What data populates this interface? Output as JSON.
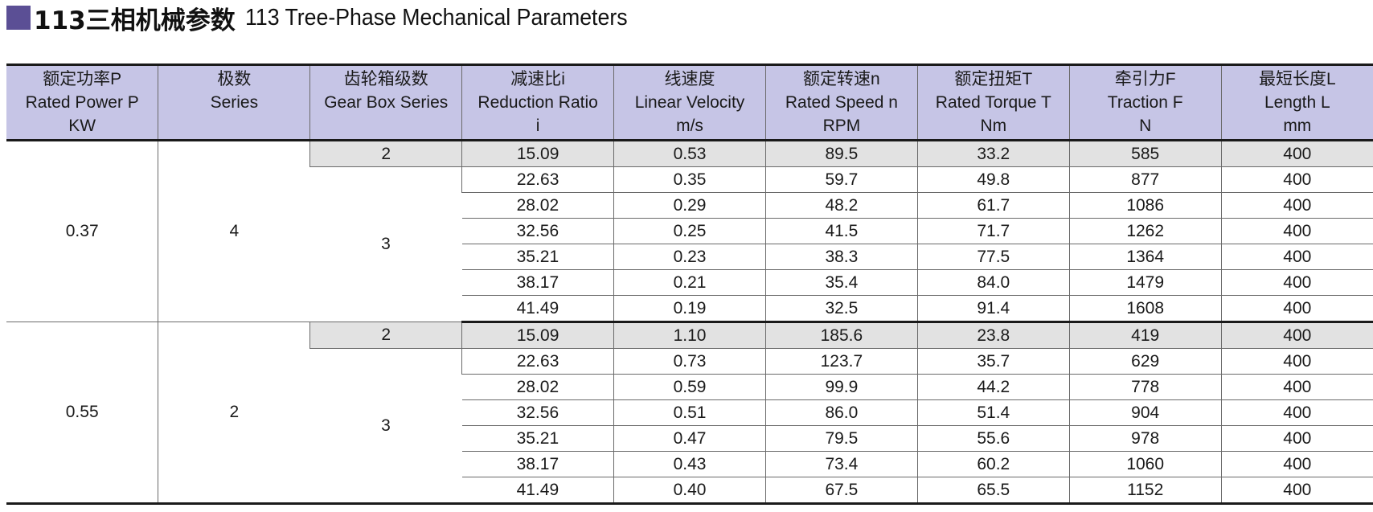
{
  "title": {
    "cn": "113三相机械参数",
    "en": "113 Tree-Phase Mechanical Parameters"
  },
  "colors": {
    "accent_square": "#5b4f95",
    "header_bg": "#c6c5e6",
    "shaded_row_bg": "#e2e2e2"
  },
  "headers": [
    {
      "cn": "额定功率P",
      "en": "Rated Power P",
      "unit": "KW"
    },
    {
      "cn": "极数",
      "en": "Series",
      "unit": ""
    },
    {
      "cn": "齿轮箱级数",
      "en": "Gear Box Series",
      "unit": ""
    },
    {
      "cn": "减速比i",
      "en": "Reduction Ratio",
      "unit": "i"
    },
    {
      "cn": "线速度",
      "en": "Linear Velocity",
      "unit": "m/s"
    },
    {
      "cn": "额定转速n",
      "en": "Rated Speed n",
      "unit": "RPM"
    },
    {
      "cn": "额定扭矩T",
      "en": "Rated Torque T",
      "unit": "Nm"
    },
    {
      "cn": "牵引力F",
      "en": "Traction F",
      "unit": "N"
    },
    {
      "cn": "最短长度L",
      "en": "Length L",
      "unit": "mm"
    }
  ],
  "groups": [
    {
      "power": "0.37",
      "poles": "4",
      "gear_two": "2",
      "gear_three": "3",
      "rows": [
        [
          "15.09",
          "0.53",
          "89.5",
          "33.2",
          "585",
          "400"
        ],
        [
          "22.63",
          "0.35",
          "59.7",
          "49.8",
          "877",
          "400"
        ],
        [
          "28.02",
          "0.29",
          "48.2",
          "61.7",
          "1086",
          "400"
        ],
        [
          "32.56",
          "0.25",
          "41.5",
          "71.7",
          "1262",
          "400"
        ],
        [
          "35.21",
          "0.23",
          "38.3",
          "77.5",
          "1364",
          "400"
        ],
        [
          "38.17",
          "0.21",
          "35.4",
          "84.0",
          "1479",
          "400"
        ],
        [
          "41.49",
          "0.19",
          "32.5",
          "91.4",
          "1608",
          "400"
        ]
      ]
    },
    {
      "power": "0.55",
      "poles": "2",
      "gear_two": "2",
      "gear_three": "3",
      "rows": [
        [
          "15.09",
          "1.10",
          "185.6",
          "23.8",
          "419",
          "400"
        ],
        [
          "22.63",
          "0.73",
          "123.7",
          "35.7",
          "629",
          "400"
        ],
        [
          "28.02",
          "0.59",
          "99.9",
          "44.2",
          "778",
          "400"
        ],
        [
          "32.56",
          "0.51",
          "86.0",
          "51.4",
          "904",
          "400"
        ],
        [
          "35.21",
          "0.47",
          "79.5",
          "55.6",
          "978",
          "400"
        ],
        [
          "38.17",
          "0.43",
          "73.4",
          "60.2",
          "1060",
          "400"
        ],
        [
          "41.49",
          "0.40",
          "67.5",
          "65.5",
          "1152",
          "400"
        ]
      ]
    }
  ]
}
